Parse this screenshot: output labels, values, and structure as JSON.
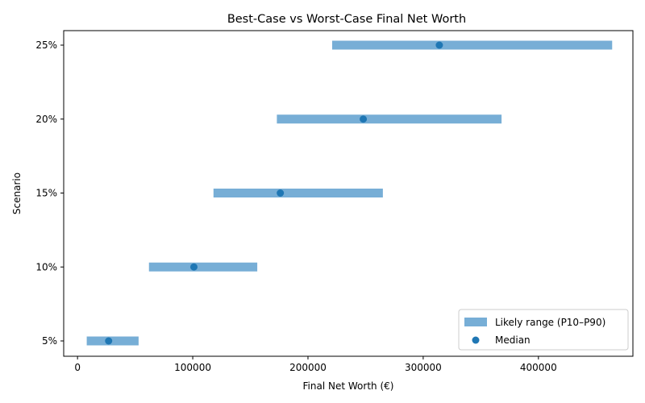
{
  "chart_data": {
    "type": "range",
    "title": "Best-Case vs Worst-Case Final Net Worth",
    "xlabel": "Final Net Worth (€)",
    "ylabel": "Scenario",
    "xlim": [
      -12000,
      482000
    ],
    "xticks": [
      0,
      100000,
      200000,
      300000,
      400000
    ],
    "xtick_labels": [
      "0",
      "100000",
      "200000",
      "300000",
      "400000"
    ],
    "categories": [
      "5%",
      "10%",
      "15%",
      "20%",
      "25%"
    ],
    "series": [
      {
        "name": "Likely range (P10–P90)",
        "low": [
          8000,
          62000,
          118000,
          173000,
          221000
        ],
        "high": [
          53000,
          156000,
          265000,
          368000,
          464000
        ]
      },
      {
        "name": "Median",
        "values": [
          27000,
          101000,
          176000,
          248000,
          314000
        ]
      }
    ],
    "grid": false,
    "legend_position": "lower-right",
    "colors": {
      "range": "#77aed6",
      "median": "#1f77b4"
    }
  }
}
